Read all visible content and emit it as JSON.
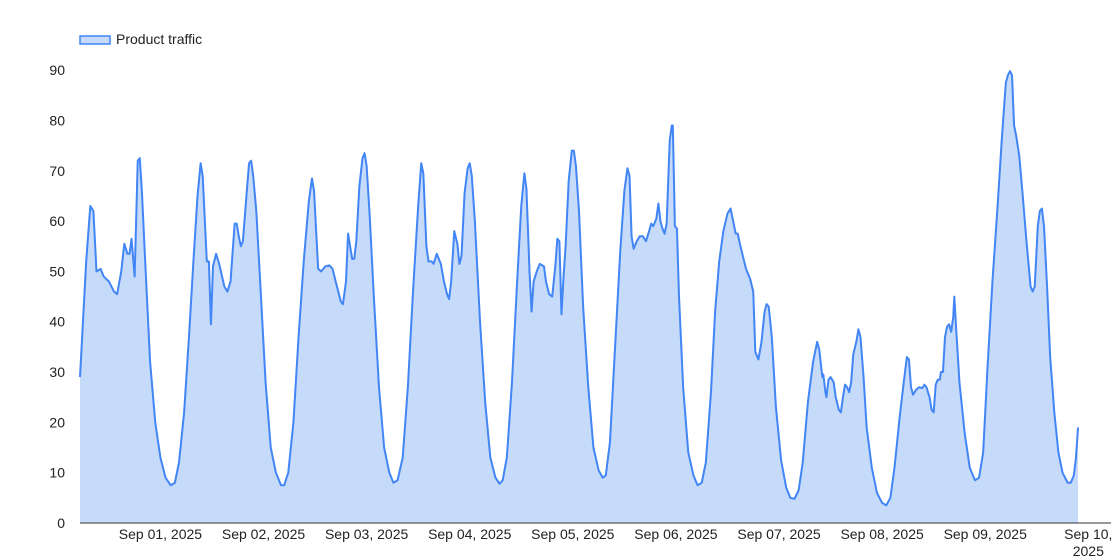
{
  "chart_data": {
    "type": "area",
    "legend": {
      "label": "Product traffic",
      "position": "top-left"
    },
    "colors": {
      "line": "#4285f4",
      "fill": "#c6daf9",
      "axis": "#333333"
    },
    "y_ticks": [
      "0",
      "10",
      "20",
      "30",
      "40",
      "50",
      "60",
      "70",
      "80",
      "90"
    ],
    "ylim": [
      0,
      95
    ],
    "grid": false,
    "x_ticks": [
      {
        "day": 1,
        "label": [
          "Sep 01, 2025"
        ]
      },
      {
        "day": 2,
        "label": [
          "Sep 02, 2025"
        ]
      },
      {
        "day": 3,
        "label": [
          "Sep 03, 2025"
        ]
      },
      {
        "day": 4,
        "label": [
          "Sep 04, 2025"
        ]
      },
      {
        "day": 5,
        "label": [
          "Sep 05, 2025"
        ]
      },
      {
        "day": 6,
        "label": [
          "Sep 06, 2025"
        ]
      },
      {
        "day": 7,
        "label": [
          "Sep 07, 2025"
        ]
      },
      {
        "day": 8,
        "label": [
          "Sep 08, 2025"
        ]
      },
      {
        "day": 9,
        "label": [
          "Sep 09, 2025"
        ]
      },
      {
        "day": 10,
        "label": [
          "Sep 10,",
          "2025"
        ]
      }
    ],
    "x_range_days": [
      0.22,
      10.22
    ],
    "series": [
      {
        "name": "Product traffic",
        "points": [
          [
            0.22,
            29
          ],
          [
            0.28,
            52
          ],
          [
            0.32,
            63
          ],
          [
            0.35,
            62
          ],
          [
            0.38,
            50
          ],
          [
            0.42,
            50.5
          ],
          [
            0.45,
            49
          ],
          [
            0.5,
            48
          ],
          [
            0.55,
            46
          ],
          [
            0.58,
            45.5
          ],
          [
            0.62,
            50
          ],
          [
            0.65,
            55.5
          ],
          [
            0.68,
            53.5
          ],
          [
            0.7,
            53.5
          ],
          [
            0.72,
            56.5
          ],
          [
            0.75,
            49
          ],
          [
            0.78,
            72
          ],
          [
            0.8,
            72.5
          ],
          [
            0.82,
            66
          ],
          [
            0.85,
            53
          ],
          [
            0.9,
            32
          ],
          [
            0.95,
            20
          ],
          [
            1.0,
            13
          ],
          [
            1.05,
            9
          ],
          [
            1.1,
            7.5
          ],
          [
            1.14,
            8
          ],
          [
            1.18,
            12
          ],
          [
            1.23,
            22
          ],
          [
            1.28,
            38
          ],
          [
            1.32,
            52
          ],
          [
            1.36,
            65
          ],
          [
            1.39,
            71.5
          ],
          [
            1.41,
            69
          ],
          [
            1.45,
            52
          ],
          [
            1.47,
            52
          ],
          [
            1.49,
            39.5
          ],
          [
            1.51,
            51
          ],
          [
            1.54,
            53.5
          ],
          [
            1.57,
            51.5
          ],
          [
            1.62,
            47
          ],
          [
            1.65,
            46
          ],
          [
            1.68,
            48
          ],
          [
            1.72,
            59.5
          ],
          [
            1.74,
            59.5
          ],
          [
            1.76,
            57
          ],
          [
            1.78,
            55
          ],
          [
            1.8,
            56
          ],
          [
            1.84,
            66.5
          ],
          [
            1.86,
            71.5
          ],
          [
            1.88,
            72
          ],
          [
            1.9,
            69
          ],
          [
            1.93,
            62
          ],
          [
            1.97,
            47
          ],
          [
            2.02,
            28
          ],
          [
            2.07,
            15
          ],
          [
            2.12,
            10
          ],
          [
            2.17,
            7.5
          ],
          [
            2.2,
            7.5
          ],
          [
            2.24,
            10
          ],
          [
            2.29,
            20
          ],
          [
            2.34,
            37
          ],
          [
            2.39,
            52
          ],
          [
            2.44,
            64
          ],
          [
            2.47,
            68.5
          ],
          [
            2.49,
            66
          ],
          [
            2.53,
            50.5
          ],
          [
            2.56,
            50
          ],
          [
            2.6,
            51
          ],
          [
            2.64,
            51.2
          ],
          [
            2.67,
            50.5
          ],
          [
            2.7,
            48
          ],
          [
            2.75,
            44
          ],
          [
            2.77,
            43.5
          ],
          [
            2.8,
            48
          ],
          [
            2.82,
            57.5
          ],
          [
            2.84,
            55
          ],
          [
            2.86,
            52.5
          ],
          [
            2.88,
            52.5
          ],
          [
            2.9,
            56
          ],
          [
            2.93,
            67
          ],
          [
            2.96,
            72.5
          ],
          [
            2.98,
            73.5
          ],
          [
            3.0,
            71
          ],
          [
            3.03,
            61
          ],
          [
            3.07,
            45
          ],
          [
            3.12,
            27
          ],
          [
            3.17,
            15
          ],
          [
            3.22,
            10
          ],
          [
            3.26,
            8
          ],
          [
            3.3,
            8.5
          ],
          [
            3.35,
            13
          ],
          [
            3.4,
            27
          ],
          [
            3.45,
            46
          ],
          [
            3.5,
            63
          ],
          [
            3.53,
            71.5
          ],
          [
            3.55,
            69.5
          ],
          [
            3.58,
            55
          ],
          [
            3.6,
            52
          ],
          [
            3.63,
            52
          ],
          [
            3.65,
            51.5
          ],
          [
            3.68,
            53.5
          ],
          [
            3.72,
            51.5
          ],
          [
            3.75,
            48
          ],
          [
            3.78,
            45.5
          ],
          [
            3.8,
            44.5
          ],
          [
            3.82,
            48
          ],
          [
            3.85,
            58
          ],
          [
            3.88,
            55.5
          ],
          [
            3.9,
            51.5
          ],
          [
            3.92,
            53
          ],
          [
            3.95,
            65.5
          ],
          [
            3.98,
            70.5
          ],
          [
            4.0,
            71.5
          ],
          [
            4.02,
            69
          ],
          [
            4.05,
            60
          ],
          [
            4.1,
            40
          ],
          [
            4.15,
            24
          ],
          [
            4.2,
            13
          ],
          [
            4.25,
            9
          ],
          [
            4.29,
            7.8
          ],
          [
            4.32,
            8.5
          ],
          [
            4.36,
            13
          ],
          [
            4.41,
            28
          ],
          [
            4.46,
            48
          ],
          [
            4.5,
            63
          ],
          [
            4.53,
            69.5
          ],
          [
            4.55,
            66.5
          ],
          [
            4.58,
            50
          ],
          [
            4.6,
            42
          ],
          [
            4.62,
            48
          ],
          [
            4.65,
            50
          ],
          [
            4.68,
            51.5
          ],
          [
            4.72,
            51
          ],
          [
            4.74,
            48
          ],
          [
            4.77,
            45.5
          ],
          [
            4.8,
            45
          ],
          [
            4.83,
            51
          ],
          [
            4.85,
            56.5
          ],
          [
            4.87,
            56
          ],
          [
            4.89,
            41.5
          ],
          [
            4.91,
            49
          ],
          [
            4.93,
            55
          ],
          [
            4.96,
            68
          ],
          [
            4.99,
            74
          ],
          [
            5.01,
            74
          ],
          [
            5.03,
            71
          ],
          [
            5.06,
            62
          ],
          [
            5.1,
            43
          ],
          [
            5.15,
            27
          ],
          [
            5.2,
            15
          ],
          [
            5.25,
            10.5
          ],
          [
            5.29,
            9
          ],
          [
            5.32,
            9.5
          ],
          [
            5.36,
            16
          ],
          [
            5.41,
            35
          ],
          [
            5.46,
            54
          ],
          [
            5.5,
            66
          ],
          [
            5.53,
            70.5
          ],
          [
            5.55,
            69
          ],
          [
            5.57,
            57
          ],
          [
            5.59,
            54.5
          ],
          [
            5.62,
            56
          ],
          [
            5.65,
            57
          ],
          [
            5.68,
            57
          ],
          [
            5.71,
            56
          ],
          [
            5.74,
            58
          ],
          [
            5.76,
            59.5
          ],
          [
            5.78,
            59
          ],
          [
            5.81,
            60.5
          ],
          [
            5.83,
            63.5
          ],
          [
            5.85,
            60
          ],
          [
            5.87,
            58.5
          ],
          [
            5.89,
            57.5
          ],
          [
            5.91,
            59.5
          ],
          [
            5.94,
            76
          ],
          [
            5.96,
            79
          ],
          [
            5.97,
            79
          ],
          [
            5.99,
            59
          ],
          [
            6.01,
            58.5
          ],
          [
            6.03,
            45
          ],
          [
            6.07,
            27
          ],
          [
            6.12,
            14
          ],
          [
            6.17,
            9.5
          ],
          [
            6.21,
            7.5
          ],
          [
            6.25,
            8
          ],
          [
            6.29,
            12
          ],
          [
            6.34,
            26
          ],
          [
            6.38,
            42
          ],
          [
            6.42,
            52
          ],
          [
            6.46,
            58
          ],
          [
            6.5,
            61.5
          ],
          [
            6.53,
            62.5
          ],
          [
            6.56,
            59.5
          ],
          [
            6.58,
            57.5
          ],
          [
            6.6,
            57.5
          ],
          [
            6.62,
            55.5
          ],
          [
            6.65,
            53
          ],
          [
            6.68,
            50.5
          ],
          [
            6.72,
            48.5
          ],
          [
            6.75,
            46
          ],
          [
            6.77,
            34
          ],
          [
            6.8,
            32.5
          ],
          [
            6.83,
            36
          ],
          [
            6.86,
            42
          ],
          [
            6.88,
            43.5
          ],
          [
            6.9,
            43
          ],
          [
            6.93,
            37
          ],
          [
            6.97,
            23
          ],
          [
            7.02,
            12.5
          ],
          [
            7.07,
            7
          ],
          [
            7.11,
            5
          ],
          [
            7.15,
            4.8
          ],
          [
            7.19,
            6.5
          ],
          [
            7.23,
            12
          ],
          [
            7.28,
            24
          ],
          [
            7.33,
            32
          ],
          [
            7.37,
            36
          ],
          [
            7.39,
            34.5
          ],
          [
            7.42,
            29
          ],
          [
            7.43,
            29.5
          ],
          [
            7.45,
            26
          ],
          [
            7.46,
            25
          ],
          [
            7.48,
            28.5
          ],
          [
            7.5,
            29
          ],
          [
            7.53,
            28
          ],
          [
            7.55,
            25
          ],
          [
            7.58,
            22.5
          ],
          [
            7.6,
            22
          ],
          [
            7.62,
            25
          ],
          [
            7.64,
            27.5
          ],
          [
            7.66,
            27
          ],
          [
            7.68,
            26
          ],
          [
            7.7,
            28
          ],
          [
            7.72,
            33.5
          ],
          [
            7.75,
            36
          ],
          [
            7.77,
            38.5
          ],
          [
            7.79,
            37
          ],
          [
            7.82,
            29
          ],
          [
            7.85,
            19
          ],
          [
            7.9,
            11
          ],
          [
            7.95,
            6
          ],
          [
            8.0,
            4
          ],
          [
            8.04,
            3.5
          ],
          [
            8.08,
            5
          ],
          [
            8.12,
            11
          ],
          [
            8.17,
            21
          ],
          [
            8.21,
            28
          ],
          [
            8.24,
            33
          ],
          [
            8.26,
            32.5
          ],
          [
            8.28,
            27
          ],
          [
            8.3,
            25.5
          ],
          [
            8.33,
            26.5
          ],
          [
            8.36,
            27
          ],
          [
            8.39,
            26.8
          ],
          [
            8.41,
            27.5
          ],
          [
            8.43,
            27
          ],
          [
            8.46,
            25
          ],
          [
            8.48,
            22.5
          ],
          [
            8.5,
            22
          ],
          [
            8.52,
            27.5
          ],
          [
            8.54,
            28.5
          ],
          [
            8.56,
            28.5
          ],
          [
            8.57,
            30
          ],
          [
            8.59,
            30
          ],
          [
            8.61,
            37
          ],
          [
            8.63,
            39
          ],
          [
            8.65,
            39.5
          ],
          [
            8.67,
            38
          ],
          [
            8.69,
            41
          ],
          [
            8.7,
            45
          ],
          [
            8.72,
            38
          ],
          [
            8.75,
            28
          ],
          [
            8.8,
            18
          ],
          [
            8.85,
            11
          ],
          [
            8.9,
            8.5
          ],
          [
            8.94,
            9
          ],
          [
            8.98,
            14
          ],
          [
            9.02,
            30
          ],
          [
            9.07,
            48
          ],
          [
            9.12,
            63
          ],
          [
            9.16,
            76
          ],
          [
            9.2,
            87.5
          ],
          [
            9.22,
            89
          ],
          [
            9.24,
            89.8
          ],
          [
            9.26,
            89
          ],
          [
            9.28,
            79
          ],
          [
            9.3,
            77
          ],
          [
            9.33,
            73
          ],
          [
            9.36,
            66
          ],
          [
            9.4,
            56
          ],
          [
            9.44,
            47
          ],
          [
            9.46,
            46
          ],
          [
            9.48,
            47
          ],
          [
            9.51,
            59
          ],
          [
            9.53,
            62
          ],
          [
            9.55,
            62.5
          ],
          [
            9.57,
            59
          ],
          [
            9.6,
            47
          ],
          [
            9.63,
            33
          ],
          [
            9.67,
            22
          ],
          [
            9.71,
            14
          ],
          [
            9.75,
            10
          ],
          [
            9.8,
            8
          ],
          [
            9.83,
            8
          ],
          [
            9.86,
            9.5
          ],
          [
            9.88,
            13
          ],
          [
            9.9,
            19
          ]
        ]
      }
    ]
  }
}
